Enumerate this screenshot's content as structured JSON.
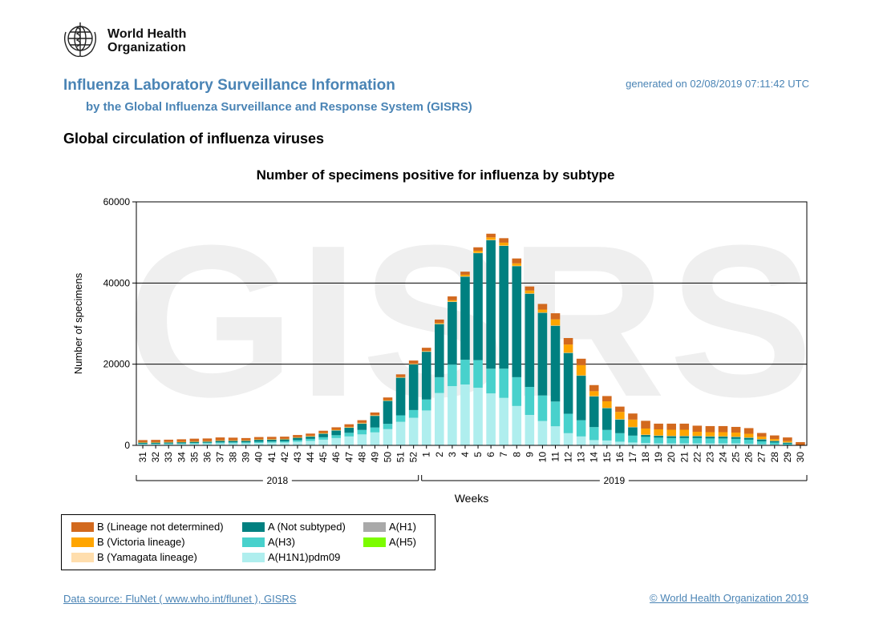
{
  "header": {
    "logo_text_line1": "World Health",
    "logo_text_line2": "Organization",
    "main_title": "Influenza Laboratory Surveillance Information",
    "sub_title": "by the Global Influenza Surveillance and Response System (GISRS)",
    "generated": "generated on 02/08/2019 07:11:42 UTC",
    "section_title": "Global circulation of influenza viruses"
  },
  "footer": {
    "data_source": "Data source: FluNet ( www.who.int/flunet ), GISRS",
    "copyright": "© World Health Organization 2019"
  },
  "chart_data": {
    "type": "bar",
    "stacked": true,
    "title": "Number of specimens positive for influenza by subtype",
    "xlabel": "Weeks",
    "ylabel": "Number of specimens",
    "ylim": [
      0,
      60000
    ],
    "yticks": [
      0,
      20000,
      40000,
      60000
    ],
    "grid": true,
    "watermark": "GISRS",
    "colors": {
      "B (Lineage not determined)": "#d2691e",
      "B (Victoria lineage)": "#ffa500",
      "B (Yamagata lineage)": "#ffdead",
      "A (Not subtyped)": "#008080",
      "A(H3)": "#48d1cc",
      "A(H1N1)pdm09": "#afeeee",
      "A(H1)": "#a9a9a9",
      "A(H5)": "#7cfc00"
    },
    "year_groups": [
      {
        "label": "2018",
        "start_index": 0,
        "end_index": 21
      },
      {
        "label": "2019",
        "start_index": 22,
        "end_index": 51
      }
    ],
    "categories": [
      "31",
      "32",
      "33",
      "34",
      "35",
      "36",
      "37",
      "38",
      "39",
      "40",
      "41",
      "42",
      "43",
      "44",
      "45",
      "46",
      "47",
      "48",
      "49",
      "50",
      "51",
      "52",
      "1",
      "2",
      "3",
      "4",
      "5",
      "6",
      "7",
      "8",
      "9",
      "10",
      "11",
      "12",
      "13",
      "14",
      "15",
      "16",
      "17",
      "18",
      "19",
      "20",
      "21",
      "22",
      "23",
      "24",
      "25",
      "26",
      "27",
      "28",
      "29",
      "30"
    ],
    "series": [
      {
        "name": "A(H1N1)pdm09",
        "values": [
          300,
          300,
          300,
          350,
          400,
          450,
          500,
          500,
          500,
          600,
          650,
          700,
          900,
          1100,
          1400,
          1800,
          2200,
          2700,
          3200,
          4000,
          5800,
          6800,
          8600,
          12900,
          14600,
          15000,
          14200,
          12800,
          11700,
          9700,
          7500,
          6000,
          4700,
          3000,
          2200,
          1300,
          1200,
          900,
          700,
          600,
          500,
          500,
          500,
          500,
          500,
          500,
          500,
          400,
          300,
          200,
          100,
          0
        ]
      },
      {
        "name": "A(H3)",
        "values": [
          100,
          100,
          150,
          150,
          200,
          200,
          250,
          250,
          250,
          300,
          300,
          300,
          400,
          500,
          600,
          700,
          900,
          1100,
          1200,
          1300,
          1600,
          1900,
          2700,
          3900,
          5300,
          6100,
          6800,
          6100,
          7200,
          7100,
          6900,
          6300,
          6100,
          4800,
          4000,
          3200,
          2600,
          2100,
          1700,
          1500,
          1400,
          1300,
          1300,
          1300,
          1200,
          1200,
          1100,
          1000,
          700,
          500,
          300,
          0
        ]
      },
      {
        "name": "A (Not subtyped)",
        "values": [
          300,
          300,
          300,
          300,
          300,
          300,
          400,
          400,
          400,
          500,
          500,
          500,
          600,
          600,
          900,
          1200,
          1300,
          1600,
          2900,
          5700,
          9300,
          11300,
          11800,
          13100,
          15500,
          20500,
          26400,
          31700,
          30300,
          27400,
          23000,
          20400,
          18700,
          15000,
          11000,
          7600,
          5400,
          3400,
          2100,
          500,
          500,
          500,
          500,
          500,
          500,
          500,
          500,
          500,
          500,
          400,
          300,
          0
        ]
      },
      {
        "name": "B (Yamagata lineage)",
        "values": [
          50,
          50,
          50,
          50,
          50,
          50,
          50,
          50,
          50,
          50,
          50,
          50,
          50,
          50,
          50,
          50,
          50,
          50,
          50,
          50,
          50,
          50,
          50,
          50,
          50,
          50,
          50,
          50,
          50,
          50,
          50,
          50,
          50,
          50,
          50,
          50,
          50,
          50,
          50,
          50,
          50,
          50,
          50,
          50,
          50,
          50,
          50,
          50,
          50,
          50,
          50,
          0
        ]
      },
      {
        "name": "B (Victoria lineage)",
        "values": [
          50,
          50,
          50,
          50,
          50,
          50,
          50,
          50,
          50,
          50,
          50,
          50,
          50,
          100,
          100,
          100,
          100,
          100,
          100,
          100,
          100,
          100,
          100,
          200,
          300,
          400,
          500,
          600,
          700,
          600,
          700,
          700,
          1500,
          2000,
          2500,
          1200,
          1600,
          1800,
          1800,
          1500,
          1500,
          1500,
          1500,
          1000,
          1000,
          1000,
          1000,
          900,
          600,
          400,
          300,
          0
        ]
      },
      {
        "name": "B (Lineage not determined)",
        "values": [
          500,
          550,
          550,
          600,
          650,
          650,
          700,
          650,
          550,
          550,
          550,
          550,
          550,
          550,
          550,
          600,
          650,
          650,
          650,
          650,
          650,
          750,
          800,
          850,
          950,
          750,
          850,
          900,
          1100,
          1200,
          1000,
          1400,
          1500,
          1600,
          1600,
          1500,
          1300,
          1300,
          1500,
          1900,
          1400,
          1500,
          1500,
          1500,
          1500,
          1500,
          1400,
          1400,
          900,
          900,
          900,
          800
        ]
      }
    ],
    "legend": [
      [
        "B (Lineage not determined)",
        "A (Not subtyped)",
        "A(H1)"
      ],
      [
        "B (Victoria lineage)",
        "A(H3)",
        "A(H5)"
      ],
      [
        "B (Yamagata lineage)",
        "A(H1N1)pdm09"
      ]
    ]
  }
}
